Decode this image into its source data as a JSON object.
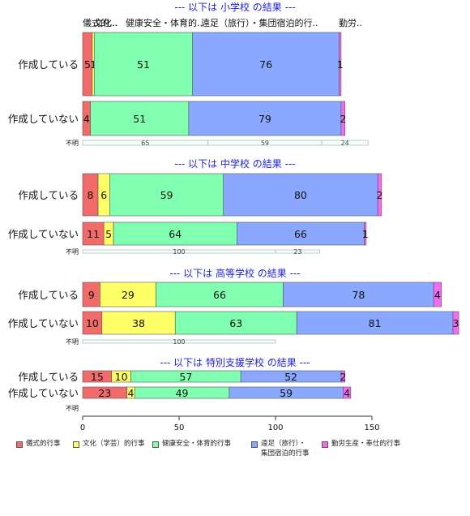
{
  "chart_data": {
    "type": "bar",
    "orientation": "horizontal",
    "stacked": true,
    "xlim": [
      0,
      150
    ],
    "x_ticks": [
      "0",
      "50",
      "100",
      "150"
    ],
    "grid": false,
    "legend_position": "bottom",
    "header_categories": [
      "儀式的...",
      "文化..",
      "健康安全・体育的..",
      "遠足（旅行）・集団宿泊的行..",
      "勤労.."
    ],
    "categories": [
      {
        "label": "儀式的行事",
        "color": "#f26b6b"
      },
      {
        "label": "文化（学芸）的行事",
        "color": "#ffff66"
      },
      {
        "label": "健康安全・体育的行事",
        "color": "#80ffb0"
      },
      {
        "label": "遠足（旅行）・\n集団宿泊的行事",
        "color": "#8aa8ff"
      },
      {
        "label": "勤労生産・奉仕的行事",
        "color": "#f26bf2"
      }
    ],
    "panels": [
      {
        "title": "--- 以下は 小学校 の結果 ---",
        "rows": [
          {
            "label": "作成している",
            "values": [
              5,
              1,
              51,
              76,
              1
            ],
            "labels": [
              "5",
              "1",
              "51",
              "76",
              "1"
            ]
          },
          {
            "label": "作成していない",
            "values": [
              4,
              0,
              51,
              79,
              2
            ],
            "labels": [
              "4",
              "",
              "51",
              "79",
              "2"
            ]
          },
          {
            "label": "不明",
            "values": [
              0,
              0,
              65,
              59,
              24
            ],
            "labels": [
              "",
              "",
              "65",
              "59",
              "24"
            ]
          }
        ]
      },
      {
        "title": "--- 以下は 中学校 の結果 ---",
        "rows": [
          {
            "label": "作成している",
            "values": [
              8,
              6,
              59,
              80,
              2
            ],
            "labels": [
              "8",
              "6",
              "59",
              "80",
              "2"
            ]
          },
          {
            "label": "作成していない",
            "values": [
              11,
              5,
              64,
              66,
              1
            ],
            "labels": [
              "11",
              "5",
              "64",
              "66",
              "1"
            ]
          },
          {
            "label": "不明",
            "values": [
              0,
              0,
              100,
              23,
              0
            ],
            "labels": [
              "",
              "",
              "100",
              "23",
              ""
            ]
          }
        ]
      },
      {
        "title": "--- 以下は 高等学校 の結果 ---",
        "rows": [
          {
            "label": "作成している",
            "values": [
              9,
              29,
              66,
              78,
              4
            ],
            "labels": [
              "9",
              "29",
              "66",
              "78",
              "4"
            ]
          },
          {
            "label": "作成していない",
            "values": [
              10,
              38,
              63,
              81,
              3
            ],
            "labels": [
              "10",
              "38",
              "63",
              "81",
              "3"
            ]
          },
          {
            "label": "不明",
            "values": [
              0,
              0,
              100,
              0,
              0
            ],
            "labels": [
              "",
              "",
              "100",
              "",
              ""
            ]
          }
        ]
      },
      {
        "title": "--- 以下は 特別支援学校 の結果 ---",
        "rows": [
          {
            "label": "作成している",
            "values": [
              15,
              10,
              57,
              52,
              2
            ],
            "labels": [
              "15",
              "10",
              "57",
              "52",
              "2"
            ]
          },
          {
            "label": "作成していない",
            "values": [
              23,
              4,
              49,
              59,
              4
            ],
            "labels": [
              "23",
              "4",
              "49",
              "59",
              "4"
            ]
          },
          {
            "label": "不明",
            "values": [
              0,
              0,
              0,
              0,
              0
            ],
            "labels": [
              "",
              "",
              "",
              "",
              ""
            ]
          }
        ]
      }
    ]
  }
}
